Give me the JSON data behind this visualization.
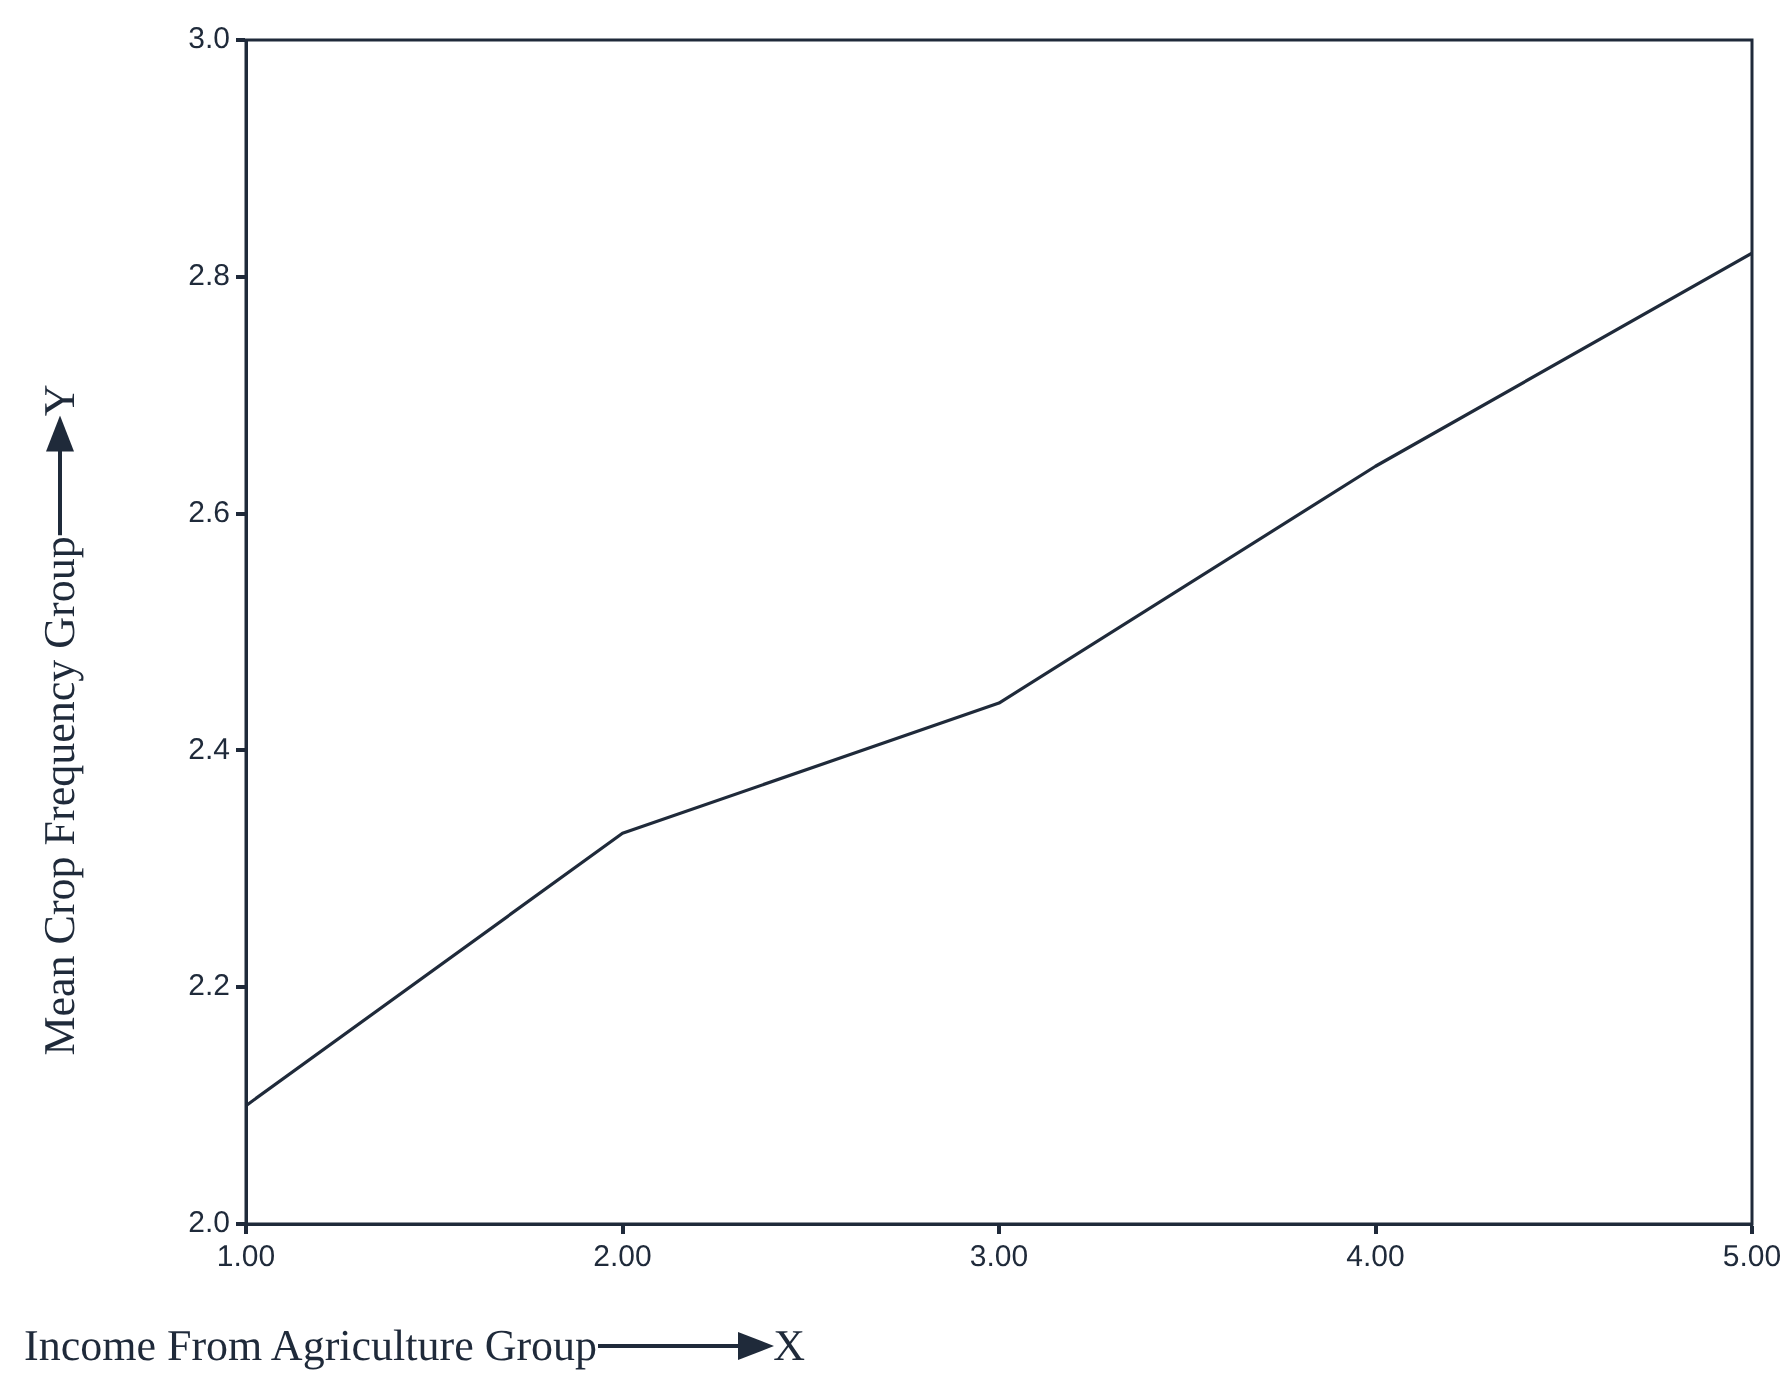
{
  "chart_data": {
    "type": "line",
    "xlabel": "Income From Agriculture Group",
    "ylabel": "Mean Crop Frequency Group",
    "annotations": [
      "X",
      "Y"
    ],
    "x": [
      1,
      2,
      3,
      4,
      5
    ],
    "series": [
      {
        "color": "#1f2a3a",
        "values": [
          2.1,
          2.33,
          2.44,
          2.64,
          2.82
        ]
      }
    ],
    "xlim": [
      1,
      5
    ],
    "ylim": [
      2,
      3
    ],
    "xticks": [
      {
        "value": 1,
        "label": "1.00"
      },
      {
        "value": 2,
        "label": "2.00"
      },
      {
        "value": 3,
        "label": "3.00"
      },
      {
        "value": 4,
        "label": "4.00"
      },
      {
        "value": 5,
        "label": "5.00"
      }
    ],
    "yticks": [
      {
        "value": 2,
        "label": "2.0"
      },
      {
        "value": 2.2,
        "label": "2.2"
      },
      {
        "value": 2.4,
        "label": "2.4"
      },
      {
        "value": 2.6,
        "label": "2.6"
      },
      {
        "value": 2.8,
        "label": "2.8"
      },
      {
        "value": 3,
        "label": "3.0"
      }
    ],
    "marker": "none",
    "legend": false
  }
}
